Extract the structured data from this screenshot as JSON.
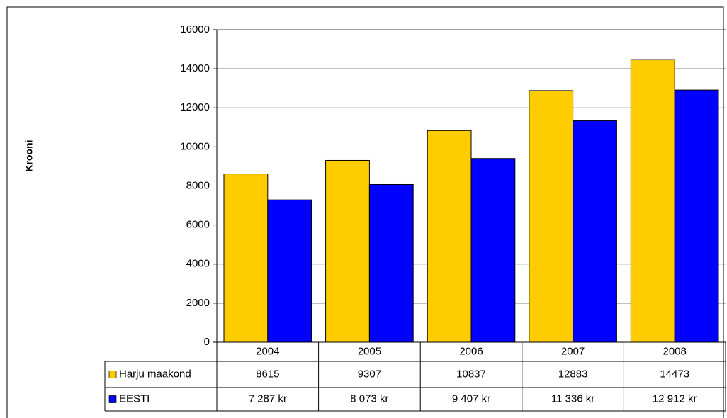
{
  "chart_data": {
    "type": "bar",
    "y_label": "Krooni",
    "categories": [
      "2004",
      "2005",
      "2006",
      "2007",
      "2008"
    ],
    "series": [
      {
        "name": "Harju maakond",
        "color": "#ffcc00",
        "values": [
          8615,
          9307,
          10837,
          12883,
          14473
        ]
      },
      {
        "name": "EESTI",
        "color": "#0000ff",
        "values": [
          7287,
          8073,
          9407,
          11336,
          12912
        ],
        "value_labels": [
          "7 287 kr",
          "8 073 kr",
          "9 407 kr",
          "11 336 kr",
          "12 912 kr"
        ]
      }
    ],
    "ylim": [
      0,
      16000
    ],
    "yticks": [
      0,
      2000,
      4000,
      6000,
      8000,
      10000,
      12000,
      14000,
      16000
    ],
    "grid": true
  }
}
